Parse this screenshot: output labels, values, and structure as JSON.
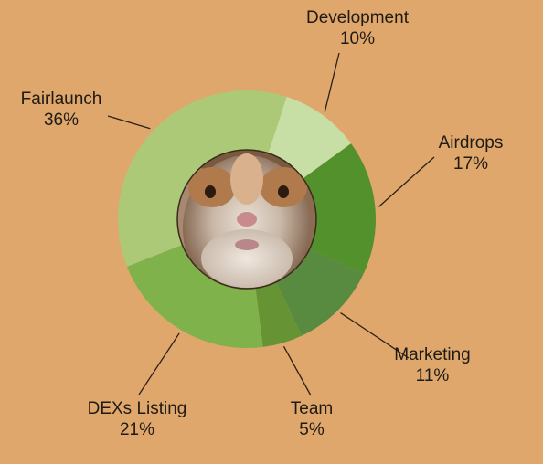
{
  "chart_data": {
    "type": "pie",
    "variant": "donut",
    "slices": [
      {
        "label": "Development",
        "value": 10,
        "pct_text": "10%",
        "color": "#C7DEA5"
      },
      {
        "label": "Airdrops",
        "value": 17,
        "pct_text": "17%",
        "color": "#52912C"
      },
      {
        "label": "Marketing",
        "value": 11,
        "pct_text": "11%",
        "color": "#588A40"
      },
      {
        "label": "Team",
        "value": 5,
        "pct_text": "5%",
        "color": "#669333"
      },
      {
        "label": "DEXs Listing",
        "value": 21,
        "pct_text": "21%",
        "color": "#7FB24B"
      },
      {
        "label": "Fairlaunch",
        "value": 36,
        "pct_text": "36%",
        "color": "#ACC978"
      }
    ],
    "center_image": "hamster-face photo"
  },
  "colors": {
    "background": "#DFA76B",
    "leader_line": "#2a2118",
    "center_border": "#3a2a1a"
  }
}
